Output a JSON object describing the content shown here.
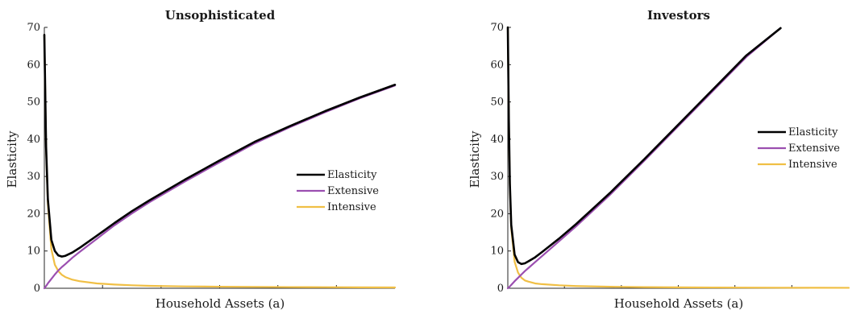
{
  "colors": {
    "Elasticity": "#000000",
    "Extensive": "#9b4fb0",
    "Intensive": "#f0bf45",
    "axis": "#262626"
  },
  "chart_data": [
    {
      "type": "line",
      "title": "Unsophisticated",
      "xlabel": "Household Assets (a)",
      "ylabel": "Elasticity",
      "ylim": [
        0,
        70
      ],
      "xlim": [
        0,
        1
      ],
      "yticks": [
        0,
        10,
        20,
        30,
        40,
        50,
        60,
        70
      ],
      "x_tick_labels_shown": false,
      "grid": false,
      "legend": "center-right",
      "x": [
        0,
        0.005,
        0.01,
        0.02,
        0.03,
        0.04,
        0.05,
        0.06,
        0.08,
        0.1,
        0.15,
        0.2,
        0.25,
        0.3,
        0.4,
        0.5,
        0.6,
        0.7,
        0.8,
        0.9,
        1.0
      ],
      "series": [
        {
          "name": "Elasticity",
          "values": [
            68,
            38,
            24,
            13,
            10,
            8.8,
            8.5,
            8.7,
            9.6,
            10.8,
            14.1,
            17.5,
            20.7,
            23.6,
            29.1,
            34.3,
            39.3,
            43.5,
            47.5,
            51.2,
            54.6
          ]
        },
        {
          "name": "Extensive",
          "values": [
            0,
            0.6,
            1.3,
            2.5,
            3.7,
            4.8,
            5.7,
            6.5,
            8.2,
            9.7,
            13.3,
            16.9,
            20.1,
            23.1,
            28.6,
            33.8,
            38.9,
            43.2,
            47.2,
            51.0,
            54.4
          ]
        },
        {
          "name": "Intensive",
          "values": [
            68,
            37.4,
            22.7,
            10.5,
            6.3,
            4.6,
            3.6,
            3.0,
            2.3,
            1.9,
            1.3,
            1.0,
            0.8,
            0.65,
            0.5,
            0.42,
            0.36,
            0.31,
            0.28,
            0.25,
            0.22
          ]
        }
      ]
    },
    {
      "type": "line",
      "title": "Investors",
      "xlabel": "Household Assets (a)",
      "ylabel": "Elasticity",
      "ylim": [
        0,
        70
      ],
      "xlim": [
        0,
        1
      ],
      "yticks": [
        0,
        10,
        20,
        30,
        40,
        50,
        60,
        70
      ],
      "x_tick_labels_shown": false,
      "grid": false,
      "legend": "center-right",
      "x": [
        0,
        0.003,
        0.006,
        0.01,
        0.02,
        0.03,
        0.04,
        0.05,
        0.06,
        0.08,
        0.1,
        0.15,
        0.2,
        0.3,
        0.4,
        0.5,
        0.6,
        0.7,
        0.8,
        0.9,
        1.0
      ],
      "series": [
        {
          "name": "Elasticity",
          "values": [
            70,
            45,
            28,
            17,
            9,
            7,
            6.5,
            6.7,
            7.2,
            8.3,
            9.7,
            13.3,
            17.2,
            25.6,
            34.6,
            43.9,
            53.2,
            62.5,
            69.8,
            null,
            null
          ]
        },
        {
          "name": "Extensive",
          "values": [
            0,
            0.2,
            0.5,
            0.9,
            1.9,
            2.8,
            3.7,
            4.6,
            5.4,
            7.0,
            8.6,
            12.6,
            16.6,
            25.1,
            34.2,
            43.5,
            52.8,
            62.1,
            69.8,
            null,
            null
          ]
        },
        {
          "name": "Intensive",
          "values": [
            70,
            44.8,
            27.5,
            16.1,
            7.1,
            4.2,
            2.8,
            2.1,
            1.8,
            1.3,
            1.1,
            0.8,
            0.6,
            0.4,
            0.3,
            0.25,
            0.2,
            0.18,
            0.15,
            0.13,
            0.12
          ]
        }
      ]
    }
  ]
}
